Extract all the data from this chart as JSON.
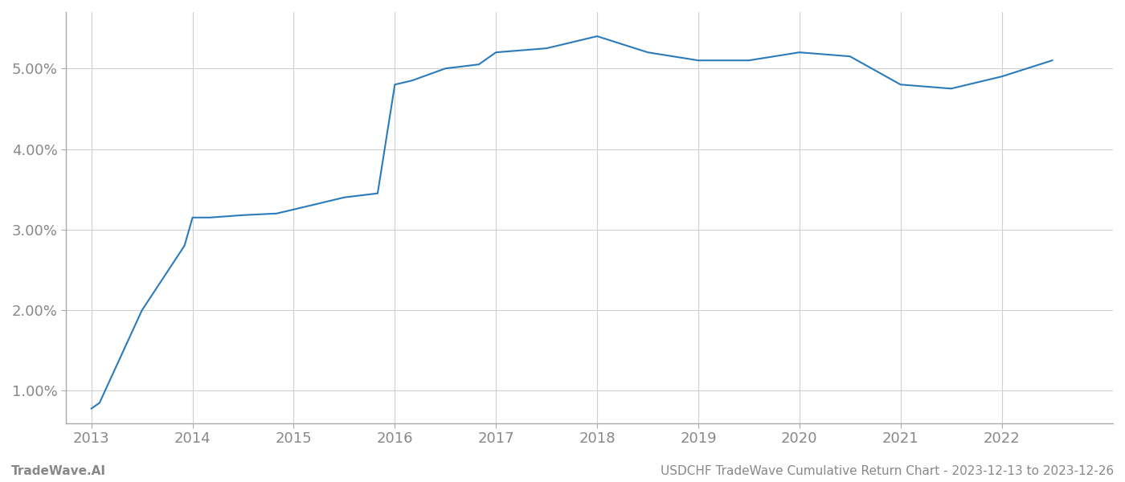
{
  "x_years": [
    2013.0,
    2013.08,
    2013.5,
    2013.92,
    2014.0,
    2014.17,
    2014.5,
    2014.83,
    2015.0,
    2015.5,
    2015.83,
    2016.0,
    2016.17,
    2016.5,
    2016.83,
    2017.0,
    2017.5,
    2018.0,
    2018.5,
    2019.0,
    2019.5,
    2020.0,
    2020.5,
    2021.0,
    2021.5,
    2022.0,
    2022.5
  ],
  "y_values": [
    0.0078,
    0.0085,
    0.02,
    0.028,
    0.0315,
    0.0315,
    0.0318,
    0.032,
    0.0325,
    0.034,
    0.0345,
    0.048,
    0.0485,
    0.05,
    0.0505,
    0.052,
    0.0525,
    0.054,
    0.052,
    0.051,
    0.051,
    0.052,
    0.0515,
    0.048,
    0.0475,
    0.049,
    0.051
  ],
  "line_color": "#2b7bba",
  "line_width": 1.5,
  "background_color": "#ffffff",
  "grid_color": "#d0d0d0",
  "x_tick_labels": [
    "2013",
    "2014",
    "2015",
    "2016",
    "2017",
    "2018",
    "2019",
    "2020",
    "2021",
    "2022"
  ],
  "x_tick_positions": [
    2013,
    2014,
    2015,
    2016,
    2017,
    2018,
    2019,
    2020,
    2021,
    2022
  ],
  "y_ticks": [
    0.01,
    0.02,
    0.03,
    0.04,
    0.05
  ],
  "y_tick_labels": [
    "1.00%",
    "2.00%",
    "3.00%",
    "4.00%",
    "5.00%"
  ],
  "ylim_min": 0.006,
  "ylim_max": 0.057,
  "xlim_min": 2012.75,
  "xlim_max": 2023.1,
  "footer_left": "TradeWave.AI",
  "footer_right": "USDCHF TradeWave Cumulative Return Chart - 2023-12-13 to 2023-12-26",
  "tick_label_color": "#888888",
  "footer_color": "#888888",
  "footer_fontsize": 11,
  "tick_fontsize": 13
}
